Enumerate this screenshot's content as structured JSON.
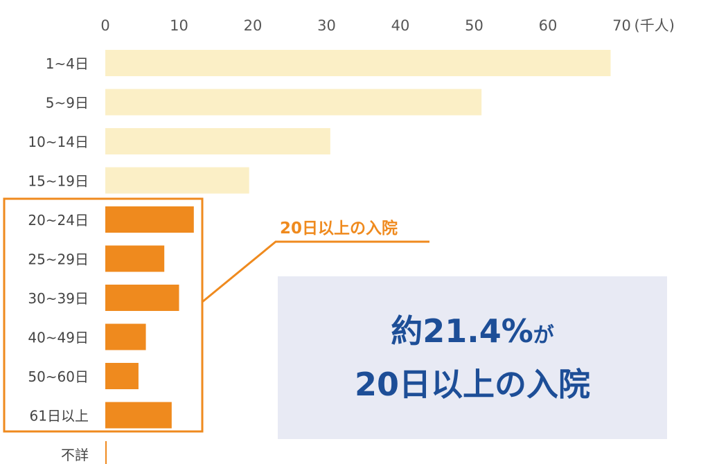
{
  "chart_data": {
    "type": "bar",
    "orientation": "horizontal",
    "categories": [
      "1~4日",
      "5~9日",
      "10~14日",
      "15~19日",
      "20~24日",
      "25~29日",
      "30~39日",
      "40~49日",
      "50~60日",
      "61日以上",
      "不詳"
    ],
    "values": [
      68.5,
      51,
      30.5,
      19.5,
      12,
      8,
      10,
      5.5,
      4.5,
      9,
      0
    ],
    "x_ticks": [
      0,
      10,
      20,
      30,
      40,
      50,
      60,
      70
    ],
    "x_unit": "(千人)",
    "xlim": [
      0,
      70
    ],
    "highlight_categories": [
      "20~24日",
      "25~29日",
      "30~39日",
      "40~49日",
      "50~60日",
      "61日以上"
    ],
    "highlight_label": "20日以上の入院",
    "colors": {
      "normal": "#fbefc6",
      "highlight": "#ef8a1e",
      "callout_bg": "#e8eaf4",
      "callout_text": "#1d4e97"
    }
  },
  "callout": {
    "main": "約21.4%",
    "suffix": "が",
    "line2": "20日以上の入院"
  }
}
